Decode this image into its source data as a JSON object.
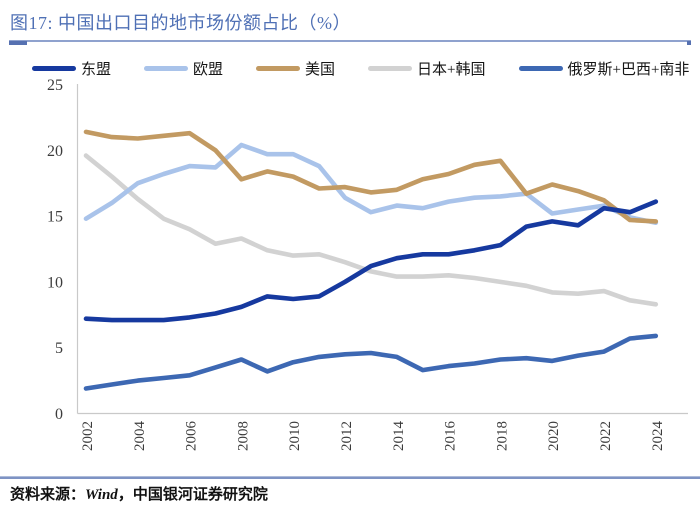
{
  "header": {
    "title": "图17:  中国出口目的地市场份额占比（%）"
  },
  "footer": {
    "source_label": "资料来源：",
    "source_wind": "Wind",
    "source_rest": "，中国银河证券研究院"
  },
  "accent_colors": {
    "title_blue": "#4F70B5",
    "rule_blue": "#8FA2CE",
    "rule_dark_blue": "#5671B1",
    "axis_gray": "#C9C9C9",
    "tick_text": "#3C3C3C"
  },
  "chart_data": {
    "type": "line",
    "title": "中国出口目的地市场份额占比（%）",
    "x": [
      2002,
      2003,
      2004,
      2005,
      2006,
      2007,
      2008,
      2009,
      2010,
      2011,
      2012,
      2013,
      2014,
      2015,
      2016,
      2017,
      2018,
      2019,
      2020,
      2021,
      2022,
      2023,
      2024
    ],
    "x_tick_labels": [
      "2002",
      "2004",
      "2006",
      "2008",
      "2010",
      "2012",
      "2014",
      "2016",
      "2018",
      "2020",
      "2022",
      "2024"
    ],
    "y_ticks": [
      0,
      5,
      10,
      15,
      20,
      25
    ],
    "ylim": [
      0,
      25
    ],
    "grid": false,
    "legend_position": "top",
    "series": [
      {
        "name": "东盟",
        "color": "#16399F",
        "values": [
          7.2,
          7.1,
          7.1,
          7.1,
          7.3,
          7.6,
          8.1,
          8.9,
          8.7,
          8.9,
          10.0,
          11.2,
          11.8,
          12.1,
          12.1,
          12.4,
          12.8,
          14.2,
          14.6,
          14.3,
          15.6,
          15.3,
          16.1
        ]
      },
      {
        "name": "欧盟",
        "color": "#A9C3EA",
        "values": [
          14.8,
          16.0,
          17.5,
          18.2,
          18.8,
          18.7,
          20.4,
          19.7,
          19.7,
          18.8,
          16.4,
          15.3,
          15.8,
          15.6,
          16.1,
          16.4,
          16.5,
          16.7,
          15.2,
          15.5,
          15.8,
          14.9,
          14.5
        ]
      },
      {
        "name": "美国",
        "color": "#C29A62",
        "values": [
          21.4,
          21.0,
          20.9,
          21.1,
          21.3,
          20.0,
          17.8,
          18.4,
          18.0,
          17.1,
          17.2,
          16.8,
          17.0,
          17.8,
          18.2,
          18.9,
          19.2,
          16.7,
          17.4,
          16.9,
          16.2,
          14.7,
          14.6
        ]
      },
      {
        "name": "日本+韩国",
        "color": "#D2D2D2",
        "values": [
          19.6,
          18.0,
          16.3,
          14.8,
          14.0,
          12.9,
          13.3,
          12.4,
          12.0,
          12.1,
          11.5,
          10.8,
          10.4,
          10.4,
          10.5,
          10.3,
          10.0,
          9.7,
          9.2,
          9.1,
          9.3,
          8.6,
          8.3
        ]
      },
      {
        "name": "俄罗斯+巴西+南非",
        "color": "#3D68B3",
        "values": [
          1.9,
          2.2,
          2.5,
          2.7,
          2.9,
          3.5,
          4.1,
          3.2,
          3.9,
          4.3,
          4.5,
          4.6,
          4.3,
          3.3,
          3.6,
          3.8,
          4.1,
          4.2,
          4.0,
          4.4,
          4.7,
          5.7,
          5.9
        ]
      }
    ]
  }
}
